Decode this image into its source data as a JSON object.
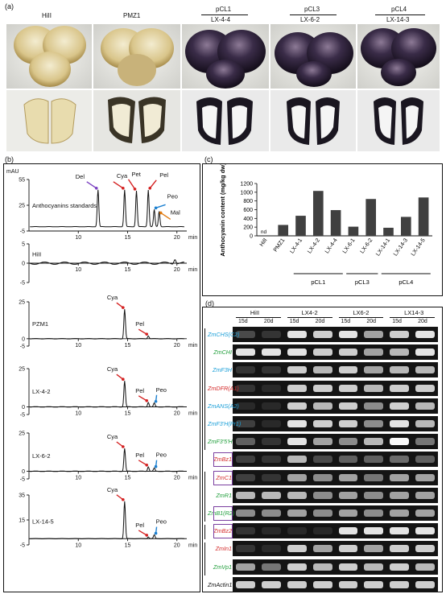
{
  "panel_a": {
    "letter": "(a)",
    "samples": [
      {
        "name": "HiII",
        "group": ""
      },
      {
        "name": "PMZ1",
        "group": ""
      },
      {
        "name": "LX-4-4",
        "group": "pCL1"
      },
      {
        "name": "LX-6-2",
        "group": "pCL3"
      },
      {
        "name": "LX-14-3",
        "group": "pCL4"
      }
    ]
  },
  "panel_b": {
    "letter": "(b)",
    "unit": "mAU",
    "x_unit": "min",
    "standards_label": "Anthocyanins standards",
    "standards_peaks": [
      "Del",
      "Cya",
      "Pet",
      "Pel",
      "Peo",
      "Mal"
    ],
    "traces": [
      {
        "label": "HiII",
        "peaks": []
      },
      {
        "label": "PZM1",
        "peaks": [
          "Cya",
          "Pel"
        ]
      },
      {
        "label": "LX-4-2",
        "peaks": [
          "Cya",
          "Pel",
          "Peo"
        ]
      },
      {
        "label": "LX-6-2",
        "peaks": [
          "Cya",
          "Pel",
          "Peo"
        ]
      },
      {
        "label": "LX-14-5",
        "peaks": [
          "Cya",
          "Pel",
          "Peo"
        ]
      }
    ],
    "yticks": [
      "55",
      "25",
      "-5"
    ],
    "xticks": [
      "10",
      "15",
      "20"
    ]
  },
  "chart_data": {
    "type": "bar",
    "ylabel": "Anthocyanin content (mg/kg dw)",
    "ylim": [
      0,
      1200
    ],
    "yticks": [
      0,
      200,
      400,
      600,
      800,
      1000,
      1200
    ],
    "categories": [
      "HiII",
      "PMZ1",
      "LX-4-1",
      "LX-4-2",
      "LX-4-4",
      "LX-6-1",
      "LX-6-2",
      "LX-14-1",
      "LX-14-3",
      "LX-14-5"
    ],
    "values": [
      0,
      250,
      460,
      1030,
      590,
      210,
      845,
      185,
      435,
      880
    ],
    "annotations": [
      "nd"
    ],
    "groups": [
      {
        "name": "pCL1",
        "members": [
          "LX-4-1",
          "LX-4-2",
          "LX-4-4"
        ]
      },
      {
        "name": "pCL3",
        "members": [
          "LX-6-1",
          "LX-6-2"
        ]
      },
      {
        "name": "pCL4",
        "members": [
          "LX-14-1",
          "LX-14-3",
          "LX-14-5"
        ]
      }
    ],
    "bar_color": "#404040"
  },
  "panel_c": {
    "letter": "(c)"
  },
  "panel_d": {
    "letter": "(d)",
    "samples": [
      "HiII",
      "LX4-2",
      "LX6-2",
      "LX14-3"
    ],
    "timepoints": [
      "15d",
      "20d"
    ],
    "genes": [
      {
        "name": "ZmCHS(C2)",
        "color": "#1a9fd8",
        "boxed": false
      },
      {
        "name": "ZmCHI",
        "color": "#1f9e3a",
        "boxed": false
      },
      {
        "name": "ZmF3H",
        "color": "#1a9fd8",
        "boxed": false
      },
      {
        "name": "ZmDFR(A1)",
        "color": "#d42a2a",
        "boxed": false
      },
      {
        "name": "ZmANS(A2)",
        "color": "#1a9fd8",
        "boxed": false
      },
      {
        "name": "ZmF3'H(Pr1)",
        "color": "#1a9fd8",
        "boxed": false
      },
      {
        "name": "ZmF3'5'H",
        "color": "#1f9e3a",
        "boxed": false
      },
      {
        "name": "ZmBz1",
        "color": "#d42a2a",
        "boxed": true
      },
      {
        "name": "ZmC1",
        "color": "#d42a2a",
        "boxed": true
      },
      {
        "name": "ZmR1",
        "color": "#1f9e3a",
        "boxed": false
      },
      {
        "name": "ZmB1(R2)",
        "color": "#1f9e3a",
        "boxed": true
      },
      {
        "name": "ZmBz2",
        "color": "#d42a2a",
        "boxed": true
      },
      {
        "name": "ZmIn1",
        "color": "#d42a2a",
        "boxed": false
      },
      {
        "name": "ZmVp1",
        "color": "#1f9e3a",
        "boxed": false
      },
      {
        "name": "ZmActin1",
        "color": "#111111",
        "boxed": false
      }
    ],
    "box_color": "#7a3fa0"
  }
}
